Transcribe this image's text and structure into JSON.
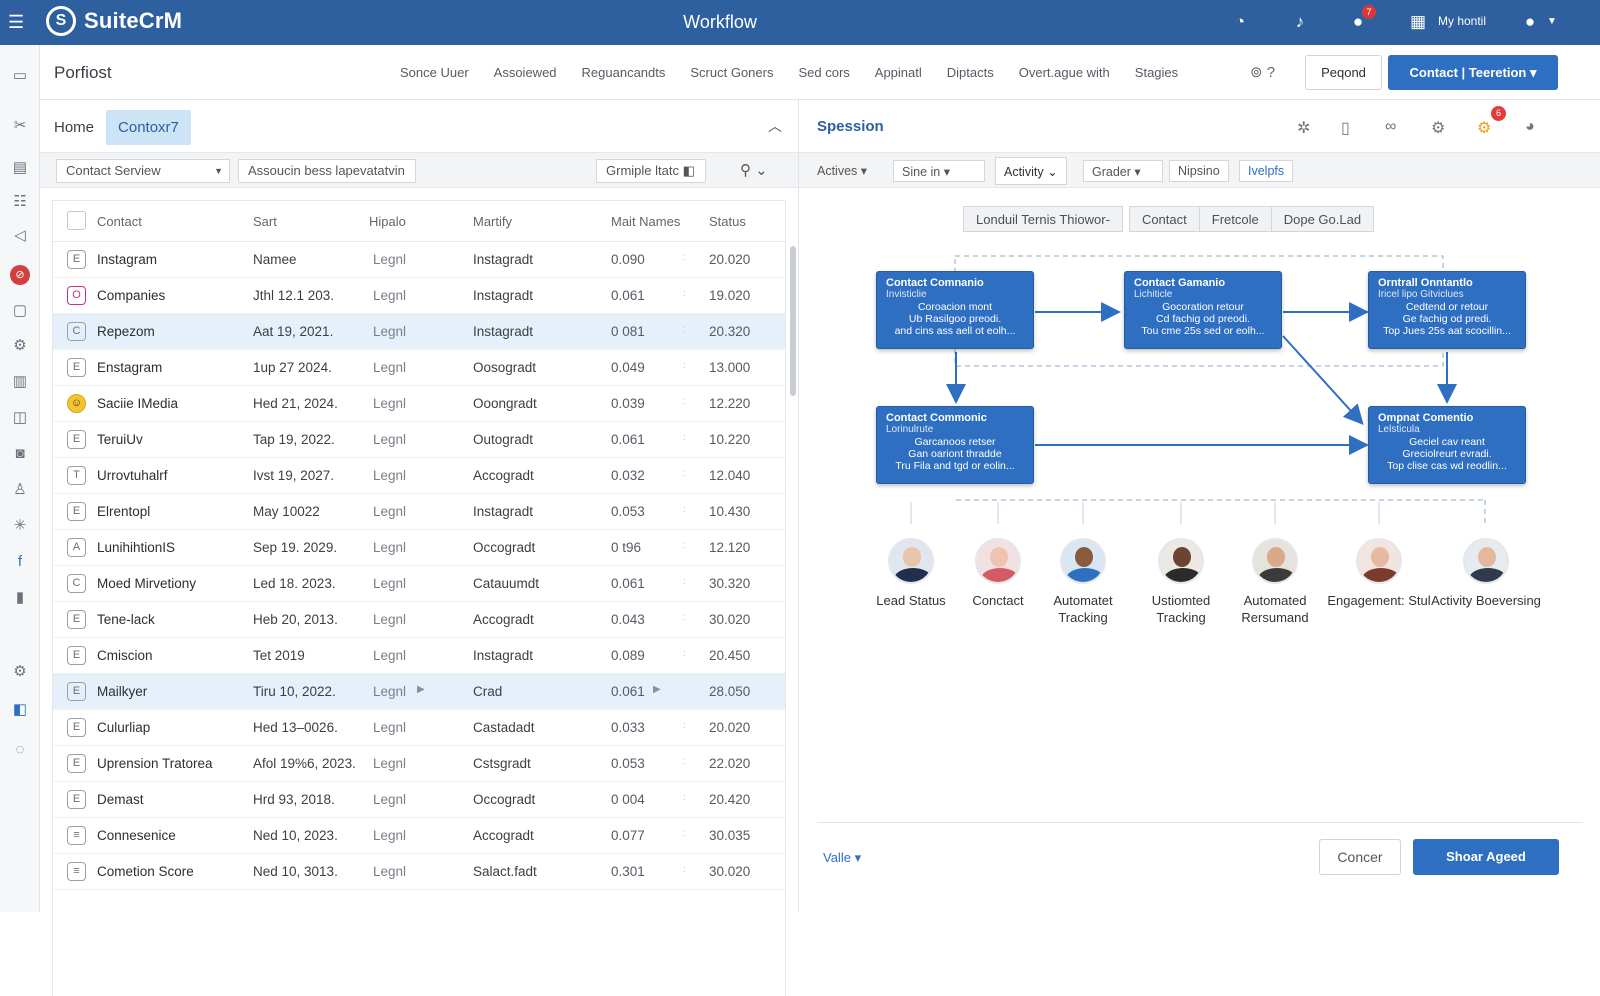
{
  "app": {
    "logo": "SuiteCrM",
    "center_title": "Workflow",
    "user_label": "My hontil",
    "notif_count": "7"
  },
  "subnav": {
    "title": "Porfiost",
    "links": [
      "Sonce Uuer",
      "Assoiewed",
      "Reguancandts",
      "Scruct Goners",
      "Sed cors",
      "Appinatl",
      "Diptacts",
      "Overt.ague with",
      "Stagies"
    ],
    "btn_secondary": "Peqond",
    "btn_primary": "Contact | Teeretion"
  },
  "left": {
    "crumb_home": "Home",
    "crumb_active": "Contoxr7",
    "filter1": "Contact Serview",
    "filter2": "Assoucin bess lapevatatvin",
    "filter3": "Grmiple ltatc",
    "columns": [
      "Contact",
      "Sart",
      "Hipalo",
      "Martify",
      "Mait Names",
      "Status"
    ],
    "rows": [
      {
        "icon": "E",
        "contact": "Instagram",
        "date": "Namee",
        "legal": "Legnl",
        "mark": "Instagradt",
        "val": "0.090",
        "status": "20.020"
      },
      {
        "icon": "O",
        "contact": "Companies",
        "date": "Jthl 12.1 203.",
        "legal": "Legnl",
        "mark": "Instagradt",
        "val": "0.061",
        "status": "19.020"
      },
      {
        "icon": "C",
        "contact": "Repezom",
        "date": "Aat 19, 2021.",
        "legal": "Legnl",
        "mark": "Instagradt",
        "val": "0 081",
        "status": "20.320"
      },
      {
        "icon": "E",
        "contact": "Enstagram",
        "date": "1up 27 2024.",
        "legal": "Legnl",
        "mark": "Oosogradt",
        "val": "0.049",
        "status": "13.000"
      },
      {
        "icon": "☺",
        "contact": "Saciie IMedia",
        "date": "Hed 21, 2024.",
        "legal": "Legnl",
        "mark": "Ooongradt",
        "val": "0.039",
        "status": "12.220"
      },
      {
        "icon": "E",
        "contact": "TeruiUv",
        "date": "Tap 19, 2022.",
        "legal": "Legnl",
        "mark": "Outogradt",
        "val": "0.061",
        "status": "10.220"
      },
      {
        "icon": "T",
        "contact": "Urrovtuhalrf",
        "date": "Ivst 19, 2027.",
        "legal": "Legnl",
        "mark": "Accogradt",
        "val": "0.032",
        "status": "12.040"
      },
      {
        "icon": "E",
        "contact": "Elrentopl",
        "date": "May 10022",
        "legal": "Legnl",
        "mark": "Instagradt",
        "val": "0.053",
        "status": "10.430"
      },
      {
        "icon": "A",
        "contact": "LunihihtionIS",
        "date": "Sep 19. 2029.",
        "legal": "Legnl",
        "mark": "Occogradt",
        "val": "0 t96",
        "status": "12.120"
      },
      {
        "icon": "C",
        "contact": "Moed Mirvetiony",
        "date": "Led 18. 2023.",
        "legal": "Legnl",
        "mark": "Catauumdt",
        "val": "0.061",
        "status": "30.320"
      },
      {
        "icon": "E",
        "contact": "Tene-lack",
        "date": "Heb 20, 2013.",
        "legal": "Legnl",
        "mark": "Accogradt",
        "val": "0.043",
        "status": "30.020"
      },
      {
        "icon": "E",
        "contact": "Cmiscion",
        "date": "Tet 2019",
        "legal": "Legnl",
        "mark": "Instagradt",
        "val": "0.089",
        "status": "20.450"
      },
      {
        "icon": "E",
        "contact": "Mailkyer",
        "date": "Tiru 10, 2022.",
        "legal": "Legnl",
        "mark": "Crad",
        "val": "0.061",
        "status": "28.050"
      },
      {
        "icon": "E",
        "contact": "Culurliap",
        "date": "Hed 13–0026.",
        "legal": "Legnl",
        "mark": "Castadadt",
        "val": "0.033",
        "status": "20.020"
      },
      {
        "icon": "E",
        "contact": "Uprension Tratorea",
        "date": "Afol 19%6, 2023.",
        "legal": "Legnl",
        "mark": "Cstsgradt",
        "val": "0.053",
        "status": "22.020"
      },
      {
        "icon": "E",
        "contact": "Demast",
        "date": "Hrd 93, 2018.",
        "legal": "Legnl",
        "mark": "Occogradt",
        "val": "0 004",
        "status": "20.420"
      },
      {
        "icon": "≡",
        "contact": "Connesenice",
        "date": "Ned 10, 2023.",
        "legal": "Legnl",
        "mark": "Accogradt",
        "val": "0.077",
        "status": "30.035"
      },
      {
        "icon": "≡",
        "contact": "Cometion Score",
        "date": "Ned 10, 3013.",
        "legal": "Legnl",
        "mark": "Salact.fadt",
        "val": "0.301",
        "status": "30.020"
      }
    ]
  },
  "right": {
    "title": "Spession",
    "badge": "6",
    "filters": [
      "Actives",
      "Sine in",
      "Activity",
      "Grader",
      "Nipsino",
      "Ivelpfs"
    ],
    "tab_single": "Londuil Ternis Thiowor-",
    "tab_group": [
      "Contact",
      "Fretcole",
      "Dope Go.Lad"
    ],
    "nodes": [
      {
        "title": "Contact Comnanio",
        "sub": "Invisticlie",
        "lines": [
          "Coroacion mont",
          "Ub Rasilgoo preodi.",
          "and cins ass aell ot eolh..."
        ]
      },
      {
        "title": "Contact Gamanio",
        "sub": "Lichiticle",
        "lines": [
          "Gocoration retour",
          "Cd fachig od preodi.",
          "Tou cme 25s sed or eolh..."
        ]
      },
      {
        "title": "Orntrall Onntantlo",
        "sub": "Iricel lipo Gitviclues",
        "lines": [
          "Cedtend or retour",
          "Ge fachig od predi.",
          "Top Jues 25s aat scocillin..."
        ]
      },
      {
        "title": "Contact Commonic",
        "sub": "Lorinulrute",
        "lines": [
          "Garcanoos retser",
          "Gan oariont thradde",
          "Tru Fila and tgd or eolin..."
        ]
      },
      {
        "title": "Ompnat Comentio",
        "sub": "Lelsticula",
        "lines": [
          "Geciel cav reant",
          "Greciolreurt evradi.",
          "Top clise cas wd reodlin..."
        ]
      }
    ],
    "people": [
      {
        "name": "Lead Status"
      },
      {
        "name": "Conctact"
      },
      {
        "name": "Automatet Tracking"
      },
      {
        "name": "Ustiomted Tracking"
      },
      {
        "name": "Automated Rersumand"
      },
      {
        "name": "Engagement: Stul"
      },
      {
        "name": "Activity Boeversing"
      }
    ],
    "value_label": "Valle",
    "cancel": "Concer",
    "save": "Shoar Ageed"
  }
}
